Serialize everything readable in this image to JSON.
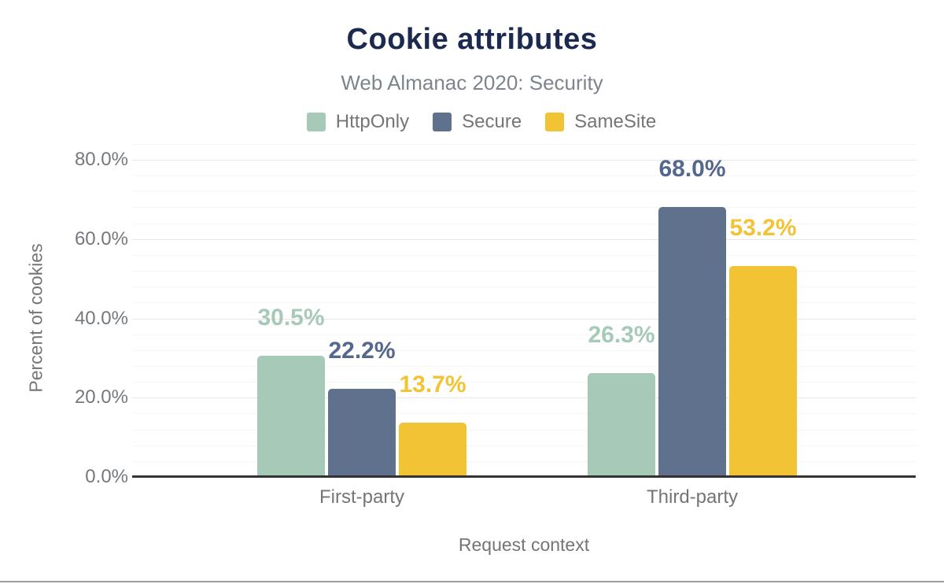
{
  "title": "Cookie attributes",
  "subtitle": "Web Almanac 2020: Security",
  "legend": [
    {
      "label": "HttpOnly",
      "color": "#a6c9b8"
    },
    {
      "label": "Secure",
      "color": "#5f718c"
    },
    {
      "label": "SameSite",
      "color": "#f2c335"
    }
  ],
  "chart_data": {
    "type": "bar",
    "title": "Cookie attributes",
    "subtitle": "Web Almanac 2020: Security",
    "categories": [
      "First-party",
      "Third-party"
    ],
    "series": [
      {
        "name": "HttpOnly",
        "color": "#a6c9b8",
        "label_color": "#a6c9b8",
        "values": [
          30.5,
          26.3
        ]
      },
      {
        "name": "Secure",
        "color": "#5f718c",
        "label_color": "#55678d",
        "values": [
          22.2,
          68.0
        ]
      },
      {
        "name": "SameSite",
        "color": "#f2c335",
        "label_color": "#f2c335",
        "values": [
          13.7,
          53.2
        ]
      }
    ],
    "data_labels": [
      "30.5%",
      "22.2%",
      "13.7%",
      "26.3%",
      "68.0%",
      "53.2%"
    ],
    "xlabel": "Request context",
    "ylabel": "Percent of cookies",
    "ylim": [
      0,
      80
    ],
    "ytick_values": [
      0,
      20,
      40,
      60,
      80
    ],
    "ytick_labels": [
      "0.0%",
      "20.0%",
      "40.0%",
      "60.0%",
      "80.0%"
    ],
    "minor_grid_step": 4,
    "grid": true,
    "legend_position": "top",
    "colors": {
      "title": "#1b2a4e",
      "subtitle": "#7d848d",
      "axis_text": "#757575",
      "axis_line": "#333333",
      "major_grid": "#e6e6e6",
      "minor_grid": "#f5f5f5"
    }
  }
}
